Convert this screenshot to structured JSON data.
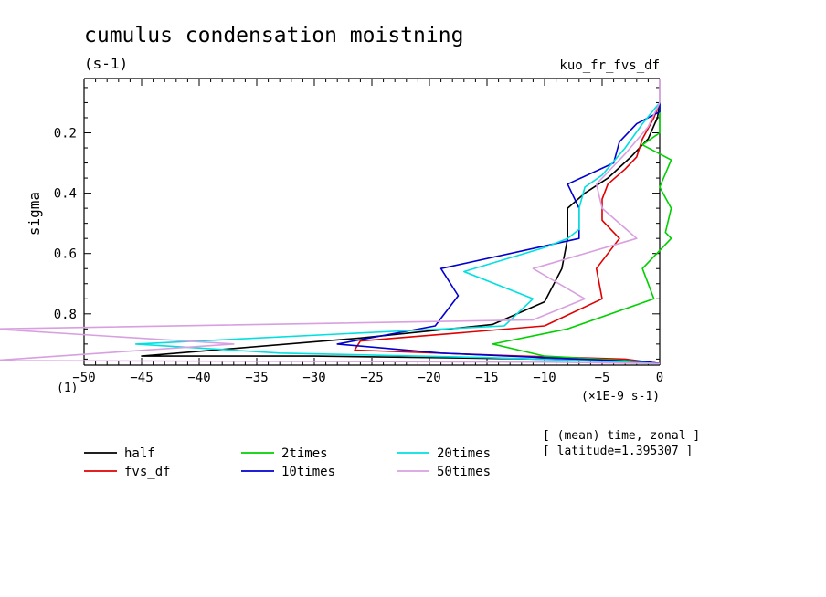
{
  "header": {
    "title": "cumulus condensation moistning",
    "units": "(s-1)",
    "varname": "kuo_fr_fvs_df",
    "y_unit": "(1)",
    "x_unit": "(×1E-9 s-1)",
    "info_line1": "[ (mean) time, zonal ]",
    "info_line2": "[ latitude=1.395307 ]"
  },
  "chart_data": {
    "type": "line",
    "title": "cumulus condensation moistning",
    "xlabel": "",
    "ylabel": "sigma",
    "xlim": [
      -50,
      0
    ],
    "ylim": [
      0.02,
      0.97
    ],
    "y_reversed": true,
    "x_ticks": [
      -50,
      -45,
      -40,
      -35,
      -30,
      -25,
      -20,
      -15,
      -10,
      -5,
      0
    ],
    "y_ticks": [
      0.2,
      0.4,
      0.6,
      0.8
    ],
    "x_tick_labels": [
      "−50",
      "−45",
      "−40",
      "−35",
      "−30",
      "−25",
      "−20",
      "−15",
      "−10",
      "−5",
      "0"
    ],
    "y_tick_labels": [
      "0.2",
      "0.4",
      "0.6",
      "0.8"
    ],
    "grid": false,
    "legend_position": "bottom",
    "series": [
      {
        "name": "half",
        "color": "#000000",
        "points": [
          [
            0,
            0.1
          ],
          [
            -0.2,
            0.15
          ],
          [
            -1,
            0.22
          ],
          [
            -2.5,
            0.28
          ],
          [
            -4.5,
            0.35
          ],
          [
            -6.5,
            0.4
          ],
          [
            -8,
            0.45
          ],
          [
            -8,
            0.55
          ],
          [
            -8.5,
            0.65
          ],
          [
            -10,
            0.76
          ],
          [
            -14.5,
            0.835
          ],
          [
            -26,
            0.88
          ],
          [
            -45,
            0.94
          ],
          [
            -30,
            0.94
          ],
          [
            -10,
            0.95
          ],
          [
            -1,
            0.96
          ],
          [
            0,
            0.965
          ]
        ]
      },
      {
        "name": "fvs_df",
        "color": "#e00000",
        "points": [
          [
            0,
            0.1
          ],
          [
            -0.5,
            0.15
          ],
          [
            -1.5,
            0.22
          ],
          [
            -2,
            0.28
          ],
          [
            -3,
            0.32
          ],
          [
            -4.5,
            0.37
          ],
          [
            -5,
            0.42
          ],
          [
            -5,
            0.49
          ],
          [
            -3.5,
            0.55
          ],
          [
            -5.5,
            0.65
          ],
          [
            -5,
            0.75
          ],
          [
            -10,
            0.84
          ],
          [
            -26,
            0.89
          ],
          [
            -26.5,
            0.92
          ],
          [
            -12,
            0.94
          ],
          [
            -3,
            0.95
          ],
          [
            0,
            0.965
          ]
        ]
      },
      {
        "name": "2times",
        "color": "#00d000",
        "points": [
          [
            0,
            0.1
          ],
          [
            0,
            0.2
          ],
          [
            -1.5,
            0.24
          ],
          [
            1,
            0.29
          ],
          [
            0,
            0.38
          ],
          [
            1,
            0.45
          ],
          [
            0.5,
            0.53
          ],
          [
            1,
            0.55
          ],
          [
            -1.5,
            0.65
          ],
          [
            -0.5,
            0.75
          ],
          [
            -8,
            0.85
          ],
          [
            -14.5,
            0.9
          ],
          [
            -10,
            0.94
          ],
          [
            -3,
            0.955
          ],
          [
            0,
            0.965
          ]
        ]
      },
      {
        "name": "10times",
        "color": "#0000d0",
        "points": [
          [
            0,
            0.1
          ],
          [
            0,
            0.13
          ],
          [
            -2,
            0.17
          ],
          [
            -3.5,
            0.23
          ],
          [
            -4,
            0.3
          ],
          [
            -8,
            0.37
          ],
          [
            -7,
            0.45
          ],
          [
            -7,
            0.55
          ],
          [
            -19,
            0.65
          ],
          [
            -17.5,
            0.74
          ],
          [
            -19.5,
            0.84
          ],
          [
            -28,
            0.9
          ],
          [
            -19,
            0.93
          ],
          [
            -7,
            0.95
          ],
          [
            -1,
            0.96
          ],
          [
            0,
            0.965
          ]
        ]
      },
      {
        "name": "20times",
        "color": "#00e0e0",
        "points": [
          [
            0,
            0.1
          ],
          [
            -1.5,
            0.17
          ],
          [
            -3,
            0.25
          ],
          [
            -5,
            0.34
          ],
          [
            -6.5,
            0.38
          ],
          [
            -7,
            0.45
          ],
          [
            -7,
            0.52
          ],
          [
            -8,
            0.55
          ],
          [
            -10,
            0.58
          ],
          [
            -17,
            0.66
          ],
          [
            -11,
            0.75
          ],
          [
            -13.5,
            0.84
          ],
          [
            -45.5,
            0.9
          ],
          [
            -33,
            0.93
          ],
          [
            -15,
            0.945
          ],
          [
            -3,
            0.96
          ],
          [
            0,
            0.965
          ]
        ]
      },
      {
        "name": "50times",
        "color": "#d8a0e0",
        "points": [
          [
            0,
            0.02
          ],
          [
            0,
            0.1
          ],
          [
            -1,
            0.18
          ],
          [
            -3,
            0.27
          ],
          [
            -4.5,
            0.33
          ],
          [
            -5.5,
            0.37
          ],
          [
            -5,
            0.45
          ],
          [
            -2,
            0.55
          ],
          [
            -11,
            0.65
          ],
          [
            -6.5,
            0.75
          ],
          [
            -11,
            0.82
          ],
          [
            -58,
            0.85
          ],
          [
            -37,
            0.9
          ],
          [
            -58,
            0.955
          ],
          [
            -10,
            0.96
          ],
          [
            0,
            0.965
          ]
        ]
      }
    ]
  }
}
